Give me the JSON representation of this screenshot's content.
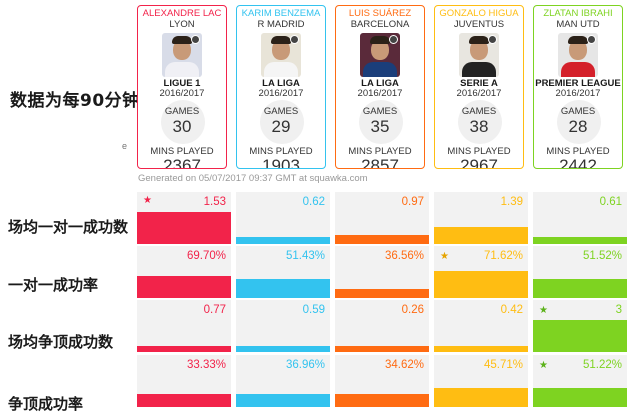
{
  "left_title": "数据为每90分钟",
  "tiny_text": "e",
  "generated": "Generated on 05/07/2017 09:37 GMT at squawka.com",
  "players": [
    {
      "name": "ALEXANDRE LAC",
      "team": "LYON",
      "league": "LIGUE 1",
      "season": "2016/2017",
      "games_label": "GAMES",
      "games": "30",
      "mins_label": "MINS PLAYED",
      "mins": "2367",
      "color": "#f2234a",
      "shirt": "#f0f0f5",
      "bg": "#d8dce8"
    },
    {
      "name": "KARIM BENZEMA",
      "team": "R MADRID",
      "league": "LA LIGA",
      "season": "2016/2017",
      "games_label": "GAMES",
      "games": "29",
      "mins_label": "MINS PLAYED",
      "mins": "1903",
      "color": "#33c3ef",
      "shirt": "#f5f5f5",
      "bg": "#e8e4d8"
    },
    {
      "name": "LUIS SUÁREZ",
      "team": "BARCELONA",
      "league": "LA LIGA",
      "season": "2016/2017",
      "games_label": "GAMES",
      "games": "35",
      "mins_label": "MINS PLAYED",
      "mins": "2857",
      "color": "#ff6b12",
      "shirt": "#1b3e7a",
      "bg": "#5a2a3a"
    },
    {
      "name": "GONZALO HIGUA",
      "team": "JUVENTUS",
      "league": "SERIE A",
      "season": "2016/2017",
      "games_label": "GAMES",
      "games": "38",
      "mins_label": "MINS PLAYED",
      "mins": "2967",
      "color": "#ffbd12",
      "shirt": "#222222",
      "bg": "#e8e6e0"
    },
    {
      "name": "ZLATAN IBRAHI",
      "team": "MAN UTD",
      "league": "PREMIER LEAGUE",
      "season": "2016/2017",
      "games_label": "GAMES",
      "games": "28",
      "mins_label": "MINS PLAYED",
      "mins": "2442",
      "color": "#7ed321",
      "shirt": "#d4202a",
      "bg": "#e6e6e6"
    }
  ],
  "stats": [
    {
      "label": "场均一对一成功数",
      "values": [
        "1.53",
        "0.62",
        "0.97",
        "1.39",
        "0.61"
      ],
      "fill_fraction": [
        1.0,
        0.22,
        0.27,
        0.53,
        0.22
      ],
      "star_index": 0
    },
    {
      "label": "一对一成功率",
      "values": [
        "69.70%",
        "51.43%",
        "36.56%",
        "71.62%",
        "51.52%"
      ],
      "fill_fraction": [
        0.69,
        0.58,
        0.27,
        0.85,
        0.58
      ],
      "star_index": 3
    },
    {
      "label": "场均争顶成功数",
      "values": [
        "0.77",
        "0.59",
        "0.26",
        "0.42",
        "3"
      ],
      "fill_fraction": [
        0.14,
        0.1,
        0.05,
        0.07,
        1.0
      ],
      "star_index": 4
    },
    {
      "label": "争顶成功率",
      "values": [
        "33.33%",
        "36.96%",
        "34.62%",
        "45.71%",
        "51.22%"
      ],
      "fill_fraction": [
        0.4,
        0.4,
        0.4,
        0.6,
        0.6
      ],
      "star_index": 4
    }
  ]
}
